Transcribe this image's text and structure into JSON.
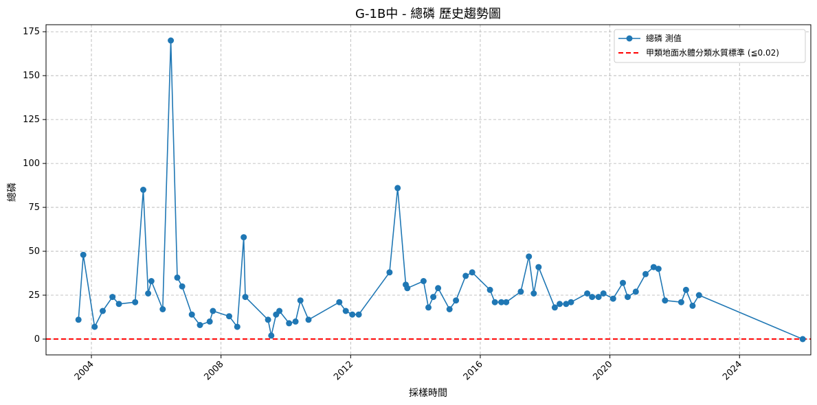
{
  "chart_data": {
    "type": "line",
    "title": "G-1B中 - 總磷 歷史趨勢圖",
    "xlabel": "採樣時間",
    "ylabel": "總磷",
    "xlim": [
      2002.6,
      2026.2
    ],
    "ylim": [
      -9,
      179
    ],
    "x_ticks": [
      {
        "value": 2004,
        "label": "2004"
      },
      {
        "value": 2008,
        "label": "2008"
      },
      {
        "value": 2012,
        "label": "2012"
      },
      {
        "value": 2016,
        "label": "2016"
      },
      {
        "value": 2020,
        "label": "2020"
      },
      {
        "value": 2024,
        "label": "2024"
      }
    ],
    "y_ticks": [
      {
        "value": 0,
        "label": "0"
      },
      {
        "value": 25,
        "label": "25"
      },
      {
        "value": 50,
        "label": "50"
      },
      {
        "value": 75,
        "label": "75"
      },
      {
        "value": 100,
        "label": "100"
      },
      {
        "value": 125,
        "label": "125"
      },
      {
        "value": 150,
        "label": "150"
      },
      {
        "value": 175,
        "label": "175"
      }
    ],
    "grid": true,
    "legend_position": "top-right",
    "series": [
      {
        "name": "總磷 測值",
        "color": "#1f77b4",
        "marker": "circle",
        "points": [
          {
            "x": 2003.6,
            "y": 11
          },
          {
            "x": 2003.75,
            "y": 48
          },
          {
            "x": 2004.1,
            "y": 7
          },
          {
            "x": 2004.35,
            "y": 16
          },
          {
            "x": 2004.65,
            "y": 24
          },
          {
            "x": 2004.85,
            "y": 20
          },
          {
            "x": 2005.35,
            "y": 21
          },
          {
            "x": 2005.6,
            "y": 85
          },
          {
            "x": 2005.75,
            "y": 26
          },
          {
            "x": 2005.85,
            "y": 33
          },
          {
            "x": 2006.2,
            "y": 17
          },
          {
            "x": 2006.45,
            "y": 170
          },
          {
            "x": 2006.65,
            "y": 35
          },
          {
            "x": 2006.8,
            "y": 30
          },
          {
            "x": 2007.1,
            "y": 14
          },
          {
            "x": 2007.35,
            "y": 8
          },
          {
            "x": 2007.65,
            "y": 10
          },
          {
            "x": 2007.75,
            "y": 16
          },
          {
            "x": 2008.25,
            "y": 13
          },
          {
            "x": 2008.5,
            "y": 7
          },
          {
            "x": 2008.7,
            "y": 58
          },
          {
            "x": 2008.75,
            "y": 24
          },
          {
            "x": 2009.45,
            "y": 11
          },
          {
            "x": 2009.55,
            "y": 2
          },
          {
            "x": 2009.7,
            "y": 14
          },
          {
            "x": 2009.8,
            "y": 16
          },
          {
            "x": 2010.1,
            "y": 9
          },
          {
            "x": 2010.3,
            "y": 10
          },
          {
            "x": 2010.45,
            "y": 22
          },
          {
            "x": 2010.7,
            "y": 11
          },
          {
            "x": 2011.65,
            "y": 21
          },
          {
            "x": 2011.85,
            "y": 16
          },
          {
            "x": 2012.05,
            "y": 14
          },
          {
            "x": 2012.25,
            "y": 14
          },
          {
            "x": 2013.2,
            "y": 38
          },
          {
            "x": 2013.45,
            "y": 86
          },
          {
            "x": 2013.7,
            "y": 31
          },
          {
            "x": 2013.75,
            "y": 29
          },
          {
            "x": 2014.25,
            "y": 33
          },
          {
            "x": 2014.4,
            "y": 18
          },
          {
            "x": 2014.55,
            "y": 24
          },
          {
            "x": 2014.7,
            "y": 29
          },
          {
            "x": 2015.05,
            "y": 17
          },
          {
            "x": 2015.25,
            "y": 22
          },
          {
            "x": 2015.55,
            "y": 36
          },
          {
            "x": 2015.75,
            "y": 38
          },
          {
            "x": 2016.3,
            "y": 28
          },
          {
            "x": 2016.45,
            "y": 21
          },
          {
            "x": 2016.65,
            "y": 21
          },
          {
            "x": 2016.8,
            "y": 21
          },
          {
            "x": 2017.25,
            "y": 27
          },
          {
            "x": 2017.5,
            "y": 47
          },
          {
            "x": 2017.65,
            "y": 26
          },
          {
            "x": 2017.8,
            "y": 41
          },
          {
            "x": 2018.3,
            "y": 18
          },
          {
            "x": 2018.45,
            "y": 20
          },
          {
            "x": 2018.65,
            "y": 20
          },
          {
            "x": 2018.8,
            "y": 21
          },
          {
            "x": 2019.3,
            "y": 26
          },
          {
            "x": 2019.45,
            "y": 24
          },
          {
            "x": 2019.65,
            "y": 24
          },
          {
            "x": 2019.8,
            "y": 26
          },
          {
            "x": 2020.1,
            "y": 23
          },
          {
            "x": 2020.4,
            "y": 32
          },
          {
            "x": 2020.55,
            "y": 24
          },
          {
            "x": 2020.8,
            "y": 27
          },
          {
            "x": 2021.1,
            "y": 37
          },
          {
            "x": 2021.35,
            "y": 41
          },
          {
            "x": 2021.5,
            "y": 40
          },
          {
            "x": 2021.7,
            "y": 22
          },
          {
            "x": 2022.2,
            "y": 21
          },
          {
            "x": 2022.35,
            "y": 28
          },
          {
            "x": 2022.55,
            "y": 19
          },
          {
            "x": 2022.75,
            "y": 25
          },
          {
            "x": 2025.95,
            "y": 0
          }
        ]
      }
    ],
    "reference_line": {
      "name": "甲類地面水體分類水質標準 (≦0.02)",
      "y": 0.02,
      "color": "#ff0000",
      "style": "dashed"
    }
  }
}
